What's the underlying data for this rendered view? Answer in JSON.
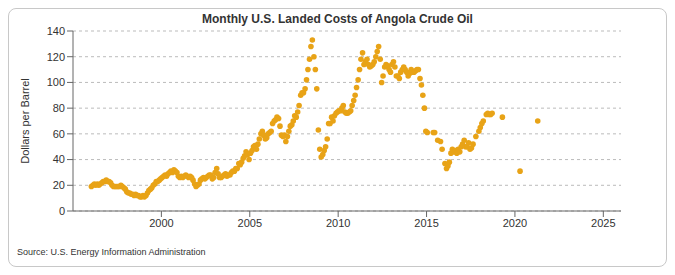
{
  "chart_data": {
    "type": "scatter",
    "title": "Monthly U.S. Landed Costs of Angola Crude Oil",
    "y_label": "Dollars per Barrel",
    "source": "Source: U.S. Energy Information Administration",
    "color": "#e8a317",
    "marker": "circle",
    "grid": true,
    "xlim": [
      1995,
      2026
    ],
    "xticks": [
      2000,
      2005,
      2010,
      2015,
      2020,
      2025
    ],
    "ylim": [
      0,
      140
    ],
    "yticks": [
      0,
      20,
      40,
      60,
      80,
      100,
      120,
      140
    ],
    "x": [
      1996.04,
      1996.13,
      1996.21,
      1996.29,
      1996.38,
      1996.46,
      1996.54,
      1996.63,
      1996.71,
      1996.79,
      1996.88,
      1996.96,
      1997.04,
      1997.13,
      1997.21,
      1997.29,
      1997.38,
      1997.46,
      1997.54,
      1997.63,
      1997.71,
      1997.79,
      1997.88,
      1997.96,
      1998.04,
      1998.13,
      1998.21,
      1998.29,
      1998.38,
      1998.46,
      1998.54,
      1998.63,
      1998.71,
      1998.79,
      1998.88,
      1998.96,
      1999.04,
      1999.13,
      1999.21,
      1999.29,
      1999.38,
      1999.46,
      1999.54,
      1999.63,
      1999.71,
      1999.79,
      1999.88,
      1999.96,
      2000.04,
      2000.13,
      2000.21,
      2000.29,
      2000.38,
      2000.46,
      2000.54,
      2000.63,
      2000.71,
      2000.79,
      2000.88,
      2000.96,
      2001.04,
      2001.13,
      2001.21,
      2001.29,
      2001.38,
      2001.46,
      2001.54,
      2001.63,
      2001.71,
      2001.79,
      2001.88,
      2001.96,
      2002.04,
      2002.13,
      2002.21,
      2002.29,
      2002.38,
      2002.46,
      2002.54,
      2002.63,
      2002.71,
      2002.79,
      2002.88,
      2002.96,
      2003.04,
      2003.13,
      2003.21,
      2003.29,
      2003.38,
      2003.46,
      2003.54,
      2003.63,
      2003.71,
      2003.79,
      2003.88,
      2003.96,
      2004.04,
      2004.13,
      2004.21,
      2004.29,
      2004.38,
      2004.46,
      2004.54,
      2004.63,
      2004.71,
      2004.79,
      2004.88,
      2004.96,
      2005.04,
      2005.13,
      2005.21,
      2005.29,
      2005.38,
      2005.46,
      2005.54,
      2005.63,
      2005.71,
      2005.79,
      2005.88,
      2005.96,
      2006.04,
      2006.13,
      2006.21,
      2006.29,
      2006.38,
      2006.46,
      2006.54,
      2006.63,
      2006.71,
      2006.79,
      2006.88,
      2006.96,
      2007.04,
      2007.13,
      2007.21,
      2007.29,
      2007.38,
      2007.46,
      2007.54,
      2007.63,
      2007.71,
      2007.79,
      2007.88,
      2007.96,
      2008.04,
      2008.13,
      2008.21,
      2008.29,
      2008.38,
      2008.46,
      2008.54,
      2008.63,
      2008.71,
      2008.79,
      2008.88,
      2008.96,
      2009.04,
      2009.13,
      2009.21,
      2009.29,
      2009.38,
      2009.46,
      2009.54,
      2009.63,
      2009.71,
      2009.79,
      2009.88,
      2009.96,
      2010.04,
      2010.13,
      2010.21,
      2010.29,
      2010.38,
      2010.46,
      2010.54,
      2010.63,
      2010.71,
      2010.79,
      2010.88,
      2010.96,
      2011.04,
      2011.13,
      2011.21,
      2011.29,
      2011.38,
      2011.46,
      2011.54,
      2011.63,
      2011.71,
      2011.79,
      2011.88,
      2011.96,
      2012.04,
      2012.13,
      2012.21,
      2012.29,
      2012.38,
      2012.46,
      2012.54,
      2012.63,
      2012.71,
      2012.79,
      2012.88,
      2012.96,
      2013.04,
      2013.13,
      2013.21,
      2013.29,
      2013.38,
      2013.46,
      2013.54,
      2013.63,
      2013.71,
      2013.79,
      2013.88,
      2013.96,
      2014.04,
      2014.13,
      2014.21,
      2014.29,
      2014.38,
      2014.46,
      2014.54,
      2014.63,
      2014.71,
      2014.79,
      2014.88,
      2014.96,
      2015.04,
      2015.38,
      2015.46,
      2015.63,
      2015.79,
      2015.88,
      2016.04,
      2016.13,
      2016.21,
      2016.29,
      2016.38,
      2016.46,
      2016.54,
      2016.63,
      2016.71,
      2016.79,
      2016.88,
      2016.96,
      2017.04,
      2017.13,
      2017.21,
      2017.29,
      2017.38,
      2017.46,
      2017.54,
      2017.63,
      2017.79,
      2017.96,
      2018.04,
      2018.13,
      2018.21,
      2018.38,
      2018.46,
      2018.54,
      2018.63,
      2018.71,
      2019.29,
      2020.29,
      2021.29
    ],
    "values": [
      19,
      20,
      21,
      20,
      21,
      20,
      21,
      22,
      23,
      23,
      24,
      23,
      23,
      22,
      20,
      19,
      19,
      19,
      19,
      19,
      20,
      19,
      18,
      17,
      15,
      14,
      14,
      13,
      13,
      12,
      13,
      12,
      12,
      11,
      11,
      12,
      11,
      12,
      14,
      16,
      17,
      18,
      20,
      21,
      23,
      23,
      24,
      25,
      26,
      27,
      28,
      27,
      29,
      30,
      31,
      30,
      32,
      31,
      30,
      27,
      26,
      27,
      26,
      27,
      28,
      27,
      26,
      27,
      26,
      24,
      21,
      19,
      20,
      21,
      24,
      25,
      26,
      25,
      26,
      27,
      28,
      28,
      25,
      26,
      30,
      33,
      29,
      26,
      26,
      27,
      28,
      29,
      27,
      28,
      28,
      30,
      31,
      31,
      33,
      33,
      37,
      36,
      38,
      41,
      43,
      46,
      44,
      40,
      45,
      47,
      50,
      51,
      48,
      52,
      56,
      60,
      62,
      59,
      56,
      57,
      60,
      61,
      62,
      68,
      70,
      71,
      73,
      72,
      66,
      59,
      58,
      59,
      54,
      58,
      62,
      66,
      67,
      70,
      74,
      73,
      77,
      82,
      90,
      92,
      92,
      95,
      102,
      110,
      118,
      128,
      133,
      120,
      110,
      95,
      63,
      48,
      42,
      44,
      47,
      50,
      56,
      68,
      68,
      73,
      70,
      74,
      76,
      77,
      78,
      78,
      80,
      82,
      77,
      76,
      76,
      77,
      78,
      82,
      86,
      90,
      96,
      102,
      110,
      118,
      123,
      114,
      116,
      118,
      114,
      112,
      113,
      114,
      116,
      120,
      124,
      128,
      118,
      100,
      105,
      112,
      114,
      113,
      110,
      108,
      114,
      116,
      112,
      105,
      105,
      103,
      108,
      110,
      112,
      110,
      108,
      105,
      107,
      110,
      108,
      108,
      109,
      110,
      110,
      103,
      98,
      90,
      80,
      62,
      61,
      61,
      61,
      55,
      54,
      48,
      37,
      33,
      35,
      38,
      45,
      48,
      46,
      47,
      45,
      48,
      46,
      50,
      52,
      55,
      50,
      50,
      53,
      48,
      49,
      52,
      58,
      62,
      65,
      68,
      70,
      75,
      76,
      75,
      75,
      76,
      73,
      31,
      70
    ]
  }
}
